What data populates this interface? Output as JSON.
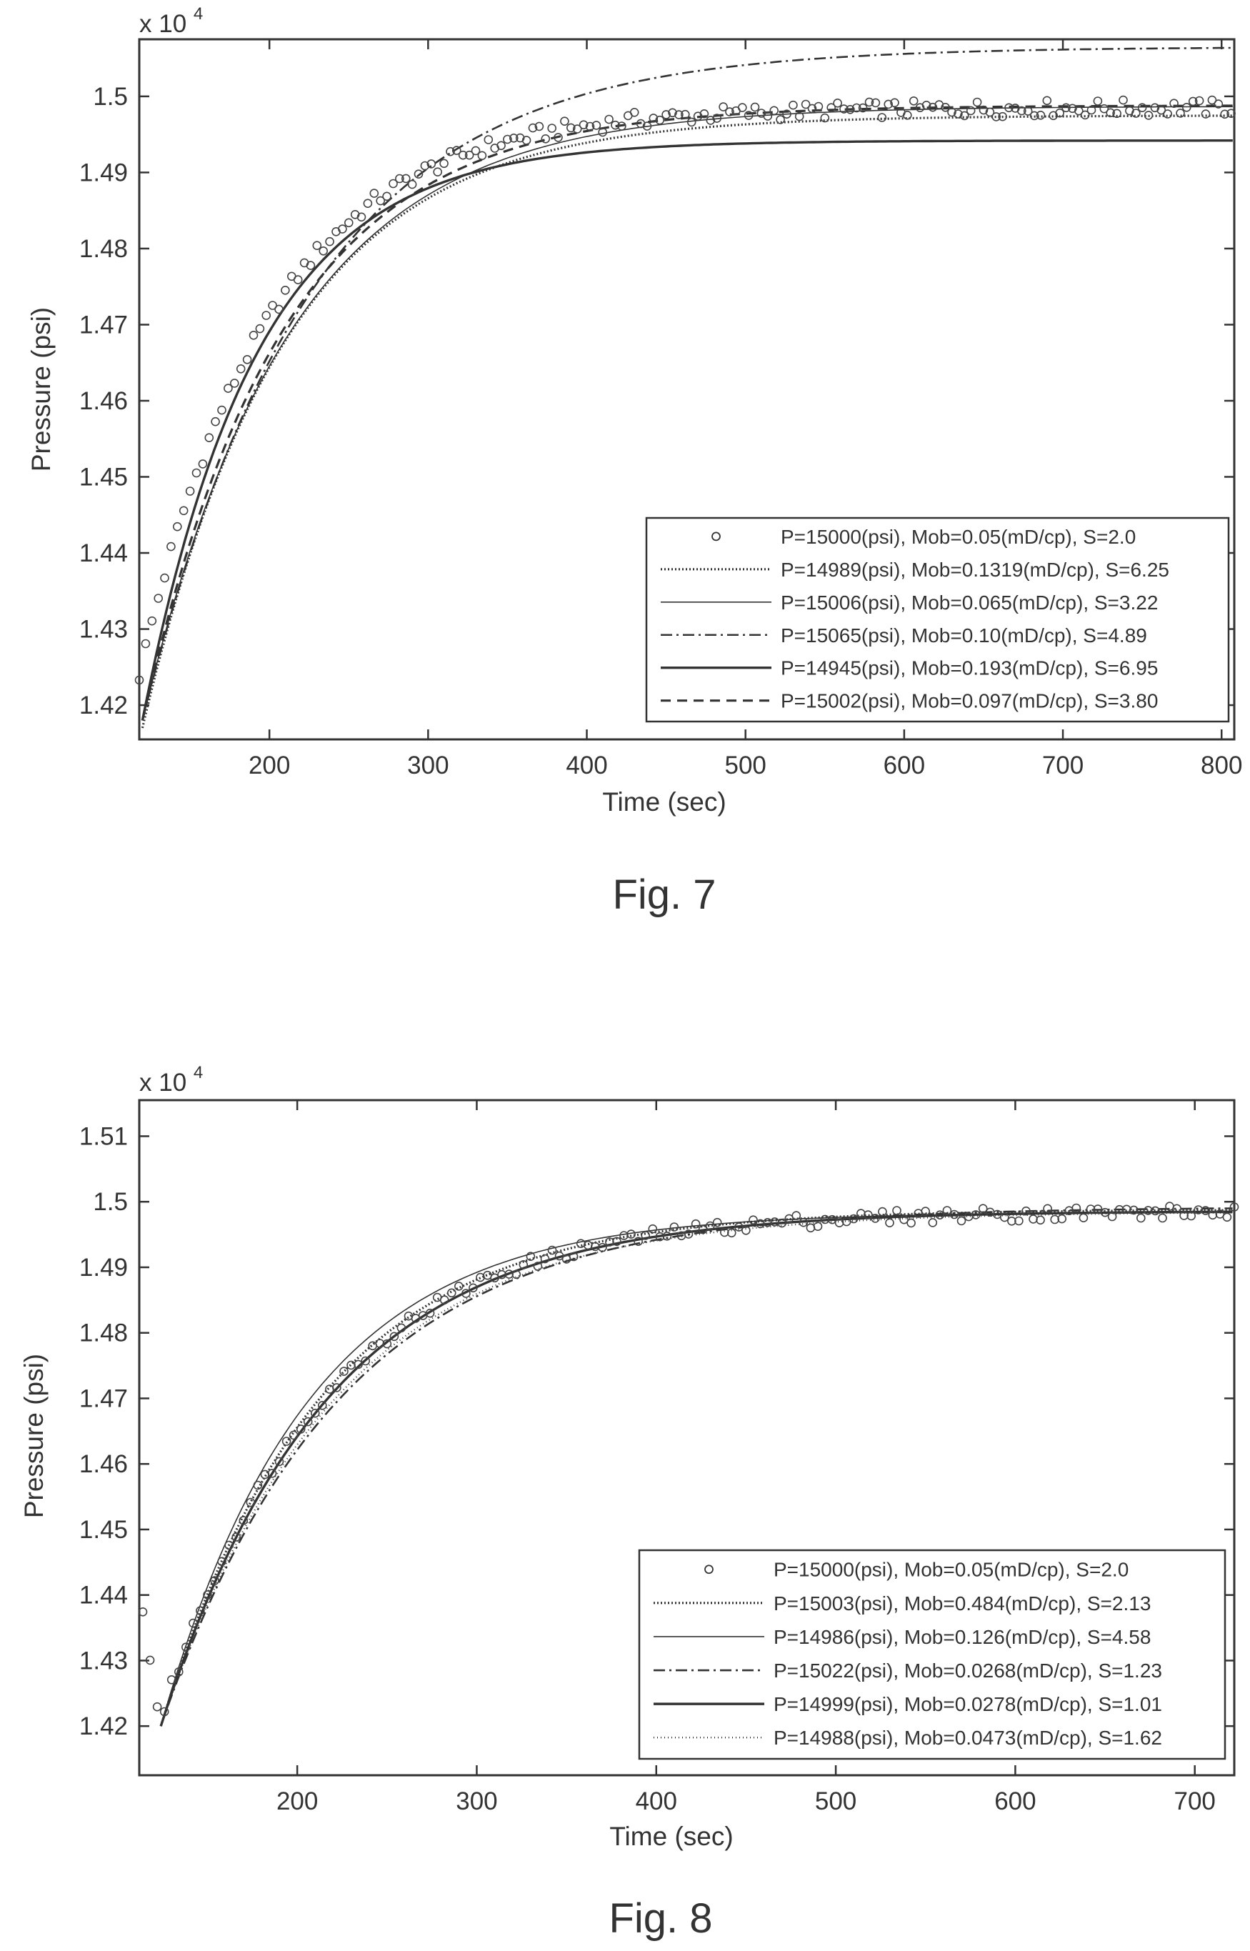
{
  "chart_data": [
    {
      "type": "line",
      "figure_label": "Fig. 7",
      "xlabel": "Time (sec)",
      "ylabel": "Pressure (psi)",
      "y_multiplier": "x 10",
      "y_multiplier_exp": "4",
      "xlim": [
        118,
        808
      ],
      "ylim": [
        1.4155,
        1.5075
      ],
      "xticks": [
        200,
        300,
        400,
        500,
        600,
        700,
        800
      ],
      "yticks": [
        1.42,
        1.43,
        1.44,
        1.45,
        1.46,
        1.47,
        1.48,
        1.49,
        1.5
      ],
      "ytick_labels": [
        "1.42",
        "1.43",
        "1.44",
        "1.45",
        "1.46",
        "1.47",
        "1.48",
        "1.49",
        "1.5"
      ],
      "grid": false,
      "legend_position": "lower-right",
      "observed": {
        "name": "P=15000(psi), Mob=0.05(mD/cp), S=2.0",
        "marker": "circle",
        "p0": 1.424,
        "pinf": 1.4985,
        "tau": 82,
        "t0": 118,
        "t_start": 118,
        "t_end": 808,
        "step": 4
      },
      "series": [
        {
          "name": "P=14989(psi), Mob=0.1319(mD/cp), S=6.25",
          "style": "dotted",
          "p0": 1.417,
          "pinf": 1.4975,
          "tau": 90,
          "t0": 120
        },
        {
          "name": "P=15006(psi), Mob=0.065(mD/cp), S=3.22",
          "style": "thin",
          "p0": 1.418,
          "pinf": 1.4987,
          "tau": 93,
          "t0": 120
        },
        {
          "name": "P=15065(psi), Mob=0.10(mD/cp), S=4.89",
          "style": "dashdot",
          "p0": 1.418,
          "pinf": 1.5065,
          "tau": 105,
          "t0": 120
        },
        {
          "name": "P=14945(psi), Mob=0.193(mD/cp), S=6.95",
          "style": "solid",
          "p0": 1.418,
          "pinf": 1.4942,
          "tau": 72,
          "t0": 120
        },
        {
          "name": "P=15002(psi), Mob=0.097(mD/cp), S=3.80",
          "style": "dashed",
          "p0": 1.418,
          "pinf": 1.4988,
          "tau": 88,
          "t0": 120
        }
      ]
    },
    {
      "type": "line",
      "figure_label": "Fig. 8",
      "xlabel": "Time (sec)",
      "ylabel": "Pressure (psi)",
      "y_multiplier": "x 10",
      "y_multiplier_exp": "4",
      "xlim": [
        112,
        722
      ],
      "ylim": [
        1.4125,
        1.5155
      ],
      "xticks": [
        200,
        300,
        400,
        500,
        600,
        700
      ],
      "yticks": [
        1.42,
        1.43,
        1.44,
        1.45,
        1.46,
        1.47,
        1.48,
        1.49,
        1.5,
        1.51
      ],
      "ytick_labels": [
        "1.42",
        "1.43",
        "1.44",
        "1.45",
        "1.46",
        "1.47",
        "1.48",
        "1.49",
        "1.5",
        "1.51"
      ],
      "grid": false,
      "legend_position": "lower-right",
      "observed": {
        "name": "P=15000(psi), Mob=0.05(mD/cp), S=2.0",
        "marker": "circle",
        "dip_start": 1.438,
        "dip_min_t": 124,
        "dip_min_p": 1.419,
        "p0": 1.421,
        "pinf": 1.4985,
        "tau": 90,
        "t0": 124,
        "t_start": 114,
        "t_end": 722,
        "step": 4
      },
      "series": [
        {
          "name": "P=15003(psi), Mob=0.484(mD/cp), S=2.13",
          "style": "dotted",
          "p0": 1.42,
          "pinf": 1.4988,
          "tau": 88,
          "t0": 124
        },
        {
          "name": "P=14986(psi), Mob=0.126(mD/cp), S=4.58",
          "style": "thin",
          "p0": 1.42,
          "pinf": 1.4984,
          "tau": 82,
          "t0": 124
        },
        {
          "name": "P=15022(psi), Mob=0.0268(mD/cp), S=1.23",
          "style": "dashdot",
          "p0": 1.42,
          "pinf": 1.4992,
          "tau": 100,
          "t0": 124
        },
        {
          "name": "P=14999(psi), Mob=0.0278(mD/cp), S=1.01",
          "style": "solid",
          "p0": 1.42,
          "pinf": 1.4986,
          "tau": 92,
          "t0": 124
        },
        {
          "name": "P=14988(psi), Mob=0.0473(mD/cp), S=1.62",
          "style": "dotted2",
          "p0": 1.42,
          "pinf": 1.4985,
          "tau": 96,
          "t0": 124
        }
      ]
    }
  ]
}
